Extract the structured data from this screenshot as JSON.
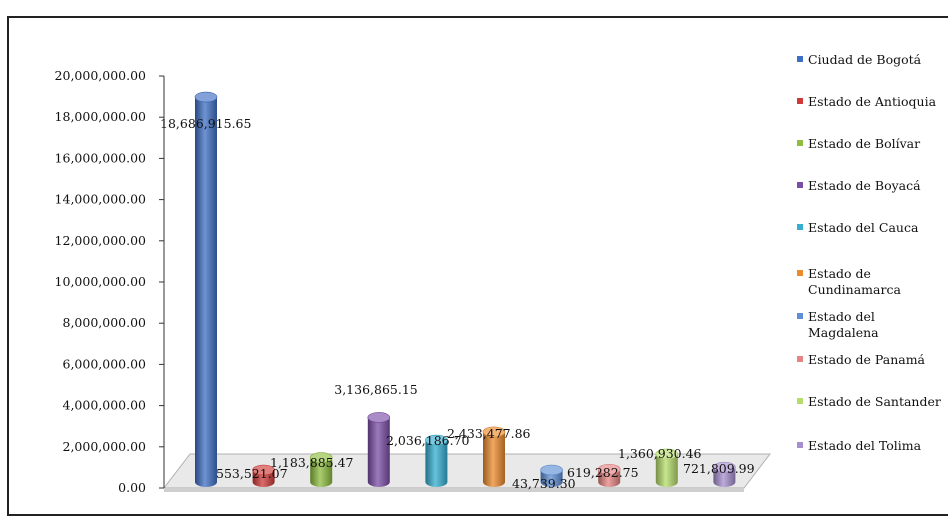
{
  "chart_data": {
    "type": "bar",
    "title": "",
    "xlabel": "",
    "ylabel": "",
    "ylim": [
      0,
      20000000
    ],
    "y_ticks": [
      "0.00",
      "2,000,000.00",
      "4,000,000.00",
      "6,000,000.00",
      "8,000,000.00",
      "10,000,000.00",
      "12,000,000.00",
      "14,000,000.00",
      "16,000,000.00",
      "18,000,000.00",
      "20,000,000.00"
    ],
    "grid": false,
    "legend_position": "right",
    "categories": [
      "Ciudad de Bogotá",
      "Estado de Antioquia",
      "Estado de Bolívar",
      "Estado de Boyacá",
      "Estado del Cauca",
      "Estado de Cundinamarca",
      "Estado del Magdalena",
      "Estado de Panamá",
      "Estado de Santander",
      "Estado del Tolima"
    ],
    "legend_lines": [
      [
        "Ciudad de Bogotá"
      ],
      [
        "Estado de Antioquia"
      ],
      [
        "Estado de Bolívar"
      ],
      [
        "Estado de Boyacá"
      ],
      [
        "Estado del Cauca"
      ],
      [
        "Estado de",
        "Cundinamarca"
      ],
      [
        "Estado del",
        "Magdalena"
      ],
      [
        "Estado de Panamá"
      ],
      [
        "Estado de Santander"
      ],
      [
        "Estado del Tolima"
      ]
    ],
    "values": [
      18686915.65,
      553521.07,
      1183885.47,
      3136865.15,
      2036186.7,
      2433477.86,
      43739.3,
      619282.75,
      1360930.46,
      721809.99
    ],
    "data_labels": [
      "18,686,915.65",
      "553,521.07",
      "1,183,885.47",
      "3,136,865.15",
      "2,036,186.70",
      "2,433,477.86",
      "43,739.30",
      "619,282.75",
      "1,360,930.46",
      "721,809.99"
    ],
    "colors": [
      "#3f6fc4",
      "#cf3a39",
      "#8ebd3f",
      "#7b4ea6",
      "#35aed0",
      "#ec8a2c",
      "#5e8fd6",
      "#e58482",
      "#b6dc6b",
      "#a58fcf"
    ],
    "legend_colors": [
      "#3f6fc4",
      "#cf3a39",
      "#8ebd3f",
      "#7b4ea6",
      "#35aed0",
      "#ec8a2c",
      "#5e8fd6",
      "#e58482",
      "#b6dc6b",
      "#a58fcf"
    ]
  }
}
